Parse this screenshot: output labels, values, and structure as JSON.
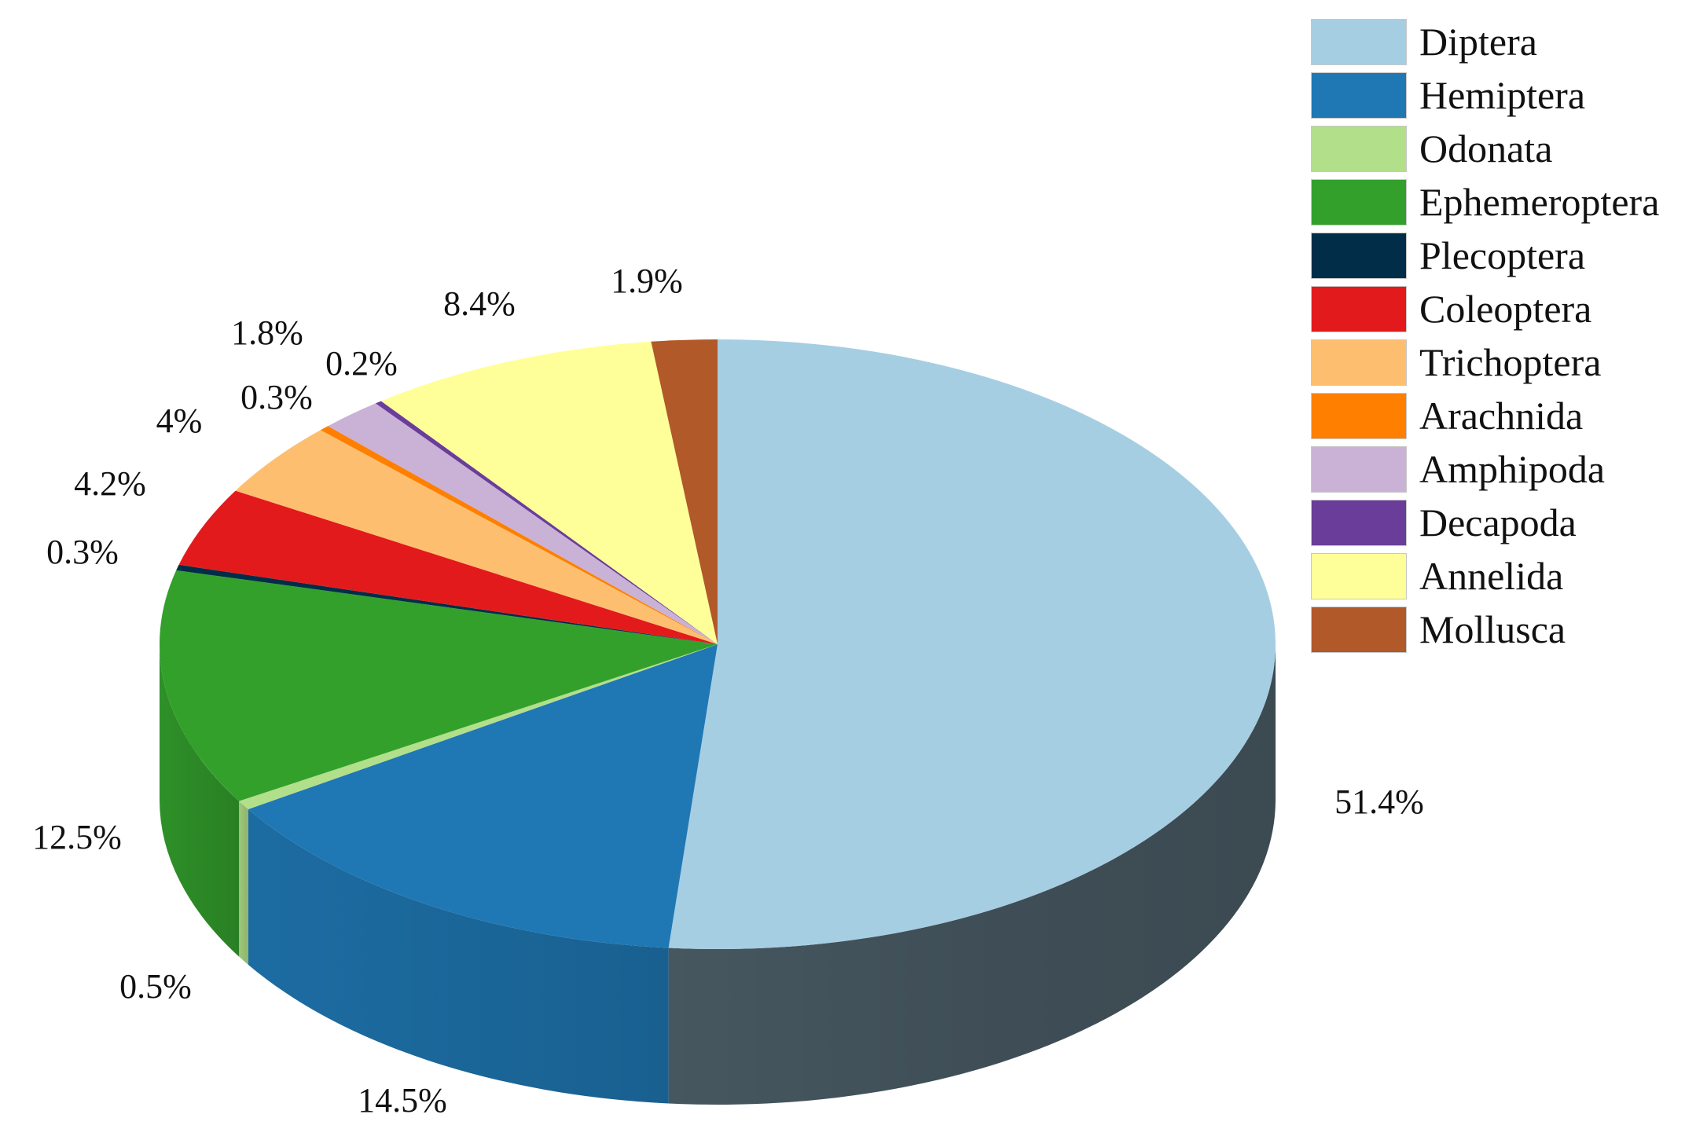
{
  "chart_data": {
    "type": "pie",
    "style": "3d",
    "legend_position": "right",
    "slices": [
      {
        "label": "Diptera",
        "value": 51.4,
        "value_label": "51.4%",
        "color": "#a6cee3"
      },
      {
        "label": "Hemiptera",
        "value": 14.5,
        "value_label": "14.5%",
        "color": "#1f78b4"
      },
      {
        "label": "Odonata",
        "value": 0.5,
        "value_label": "0.5%",
        "color": "#b2df8a"
      },
      {
        "label": "Ephemeroptera",
        "value": 12.5,
        "value_label": "12.5%",
        "color": "#33a02c"
      },
      {
        "label": "Plecoptera",
        "value": 0.3,
        "value_label": "0.3%",
        "color": "#012d48"
      },
      {
        "label": "Coleoptera",
        "value": 4.2,
        "value_label": "4.2%",
        "color": "#e31a1c"
      },
      {
        "label": "Trichoptera",
        "value": 4,
        "value_label": "4%",
        "color": "#fdbf6f"
      },
      {
        "label": "Arachnida",
        "value": 0.3,
        "value_label": "0.3%",
        "color": "#ff7f00"
      },
      {
        "label": "Amphipoda",
        "value": 1.8,
        "value_label": "1.8%",
        "color": "#cab2d6"
      },
      {
        "label": "Decapoda",
        "value": 0.2,
        "value_label": "0.2%",
        "color": "#6a3d9a"
      },
      {
        "label": "Annelida",
        "value": 8.4,
        "value_label": "8.4%",
        "color": "#ffff99"
      },
      {
        "label": "Mollusca",
        "value": 1.9,
        "value_label": "1.9%",
        "color": "#b15928"
      }
    ]
  }
}
